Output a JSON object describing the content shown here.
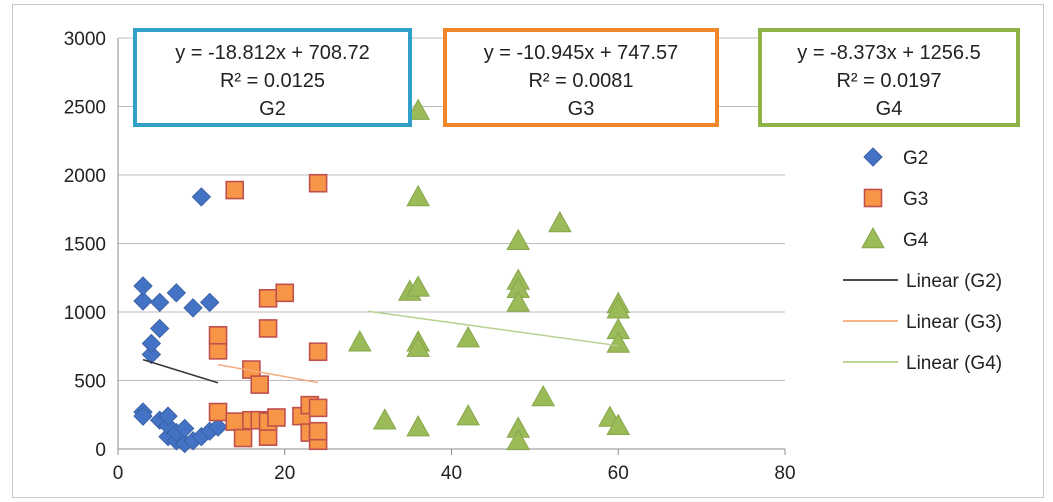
{
  "chart_data": {
    "type": "scatter",
    "title": "",
    "xlabel": "",
    "ylabel": "",
    "xlim": [
      0,
      80
    ],
    "ylim": [
      0,
      3000
    ],
    "x_ticks": [
      "0",
      "20",
      "40",
      "60",
      "80"
    ],
    "y_ticks": [
      "0",
      "500",
      "1000",
      "1500",
      "2000",
      "2500",
      "3000"
    ],
    "grid": "horizontal",
    "legend_position": "right",
    "series": [
      {
        "name": "G2",
        "marker": "diamond",
        "color": "#4472C4",
        "points": [
          [
            3,
            270
          ],
          [
            3,
            240
          ],
          [
            3,
            1080
          ],
          [
            3,
            1190
          ],
          [
            4,
            690
          ],
          [
            4,
            770
          ],
          [
            5,
            210
          ],
          [
            5,
            880
          ],
          [
            5,
            1070
          ],
          [
            6,
            90
          ],
          [
            6,
            170
          ],
          [
            6,
            240
          ],
          [
            7,
            1140
          ],
          [
            7,
            60
          ],
          [
            7,
            120
          ],
          [
            8,
            40
          ],
          [
            8,
            150
          ],
          [
            9,
            1030
          ],
          [
            9,
            60
          ],
          [
            10,
            1840
          ],
          [
            10,
            90
          ],
          [
            11,
            1070
          ],
          [
            11,
            130
          ],
          [
            12,
            160
          ]
        ]
      },
      {
        "name": "G3",
        "marker": "square",
        "color": "#F79646",
        "points": [
          [
            12,
            270
          ],
          [
            12,
            720
          ],
          [
            12,
            830
          ],
          [
            14,
            1890
          ],
          [
            14,
            200
          ],
          [
            15,
            80
          ],
          [
            16,
            210
          ],
          [
            16,
            580
          ],
          [
            17,
            470
          ],
          [
            17,
            210
          ],
          [
            18,
            1100
          ],
          [
            18,
            880
          ],
          [
            18,
            90
          ],
          [
            18,
            200
          ],
          [
            19,
            230
          ],
          [
            20,
            1140
          ],
          [
            22,
            240
          ],
          [
            23,
            320
          ],
          [
            23,
            120
          ],
          [
            24,
            1940
          ],
          [
            24,
            710
          ],
          [
            24,
            300
          ],
          [
            24,
            60
          ],
          [
            24,
            130
          ]
        ]
      },
      {
        "name": "G4",
        "marker": "triangle",
        "color": "#9BBB59",
        "points": [
          [
            29,
            780
          ],
          [
            32,
            210
          ],
          [
            35,
            1150
          ],
          [
            36,
            2470
          ],
          [
            36,
            1840
          ],
          [
            36,
            1180
          ],
          [
            36,
            780
          ],
          [
            36,
            740
          ],
          [
            36,
            160
          ],
          [
            42,
            810
          ],
          [
            42,
            240
          ],
          [
            48,
            1520
          ],
          [
            48,
            1230
          ],
          [
            48,
            1170
          ],
          [
            48,
            1070
          ],
          [
            48,
            150
          ],
          [
            48,
            60
          ],
          [
            51,
            380
          ],
          [
            53,
            1650
          ],
          [
            59,
            230
          ],
          [
            60,
            1060
          ],
          [
            60,
            1020
          ],
          [
            60,
            870
          ],
          [
            60,
            770
          ],
          [
            60,
            170
          ]
        ]
      }
    ],
    "trendlines": [
      {
        "name": "Linear (G2)",
        "color": "#333333",
        "slope": -18.812,
        "intercept": 708.72,
        "x_range": [
          3,
          12
        ],
        "equation": "y = -18.812x + 708.72",
        "r2": "R² = 0.0125",
        "label": "G2",
        "box_color": "#31A0C8"
      },
      {
        "name": "Linear (G3)",
        "color": "#F4A97A",
        "slope": -10.945,
        "intercept": 747.57,
        "x_range": [
          12,
          24
        ],
        "equation": "y = -10.945x + 747.57",
        "r2": "R² = 0.0081",
        "label": "G3",
        "box_color": "#F0882A"
      },
      {
        "name": "Linear (G4)",
        "color": "#B7CF8E",
        "slope": -8.373,
        "intercept": 1256.5,
        "x_range": [
          30,
          60
        ],
        "equation": "y = -8.373x + 1256.5",
        "r2": "R² = 0.0197",
        "label": "G4",
        "box_color": "#8DB347"
      }
    ],
    "legend": [
      "G2",
      "G3",
      "G4",
      "Linear (G2)",
      "Linear (G3)",
      "Linear (G4)"
    ]
  }
}
